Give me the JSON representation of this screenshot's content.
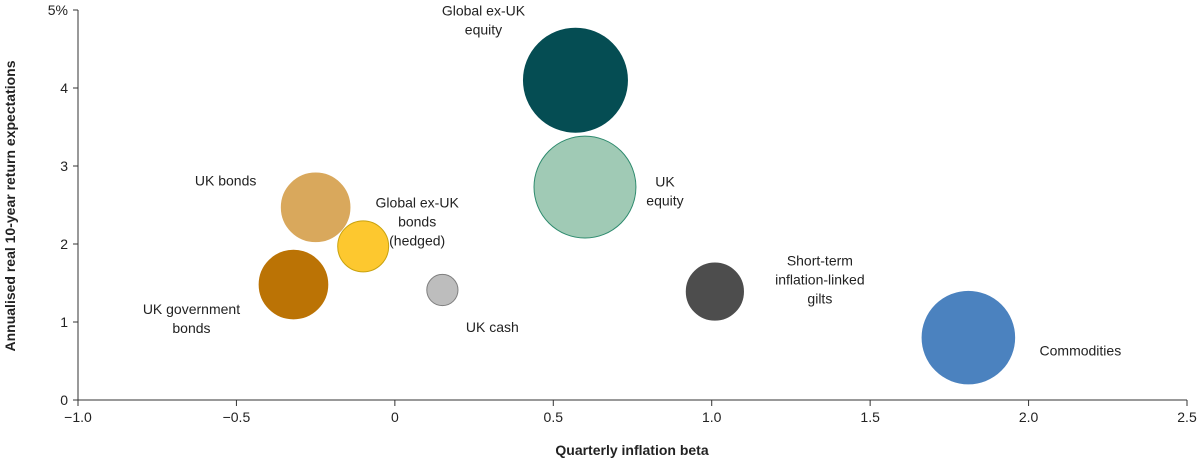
{
  "chart_data": {
    "type": "scatter",
    "variant": "bubble",
    "xlabel": "Quarterly inflation beta",
    "ylabel": "Annualised real 10-year return expectations",
    "xlim": [
      -1.0,
      2.5
    ],
    "ylim": [
      0,
      5
    ],
    "x_ticks": [
      "−1.0",
      "−0.5",
      "0",
      "0.5",
      "1.0",
      "1.5",
      "2.0",
      "2.5"
    ],
    "y_ticks": [
      "0",
      "1",
      "2",
      "3",
      "4",
      "5%"
    ],
    "grid": false,
    "points": [
      {
        "label": "Global ex-UK equity",
        "label_lines": [
          "Global ex-UK",
          "equity"
        ],
        "x": 0.57,
        "y": 4.1,
        "size": 1.0,
        "color": "#054D53",
        "stroke": "#054D53"
      },
      {
        "label": "UK equity",
        "label_lines": [
          "UK",
          "equity"
        ],
        "x": 0.6,
        "y": 2.73,
        "size": 0.98,
        "color": "#A0CAB5",
        "stroke": "#2E8B6E"
      },
      {
        "label": "UK bonds",
        "label_lines": [
          "UK bonds"
        ],
        "x": -0.25,
        "y": 2.47,
        "size": 0.66,
        "color": "#D9A85C",
        "stroke": "#D9A85C"
      },
      {
        "label": "Global ex-UK bonds (hedged)",
        "label_lines": [
          "Global ex-UK",
          "bonds",
          "(hedged)"
        ],
        "x": -0.1,
        "y": 1.97,
        "size": 0.49,
        "color": "#FDC82F",
        "stroke": "#C9A20E"
      },
      {
        "label": "UK government bonds",
        "label_lines": [
          "UK government",
          "bonds"
        ],
        "x": -0.32,
        "y": 1.48,
        "size": 0.66,
        "color": "#BB7305",
        "stroke": "#BB7305"
      },
      {
        "label": "UK cash",
        "label_lines": [
          "UK cash"
        ],
        "x": 0.15,
        "y": 1.41,
        "size": 0.3,
        "color": "#BDBDBD",
        "stroke": "#7F7F7F"
      },
      {
        "label": "Short-term inflation-linked gilts",
        "label_lines": [
          "Short-term",
          "inflation-linked",
          "gilts"
        ],
        "x": 1.01,
        "y": 1.39,
        "size": 0.55,
        "color": "#4D4D4D",
        "stroke": "#4D4D4D"
      },
      {
        "label": "Commodities",
        "label_lines": [
          "Commodities"
        ],
        "x": 1.81,
        "y": 0.8,
        "size": 0.89,
        "color": "#4B82BF",
        "stroke": "#4B82BF"
      }
    ]
  }
}
